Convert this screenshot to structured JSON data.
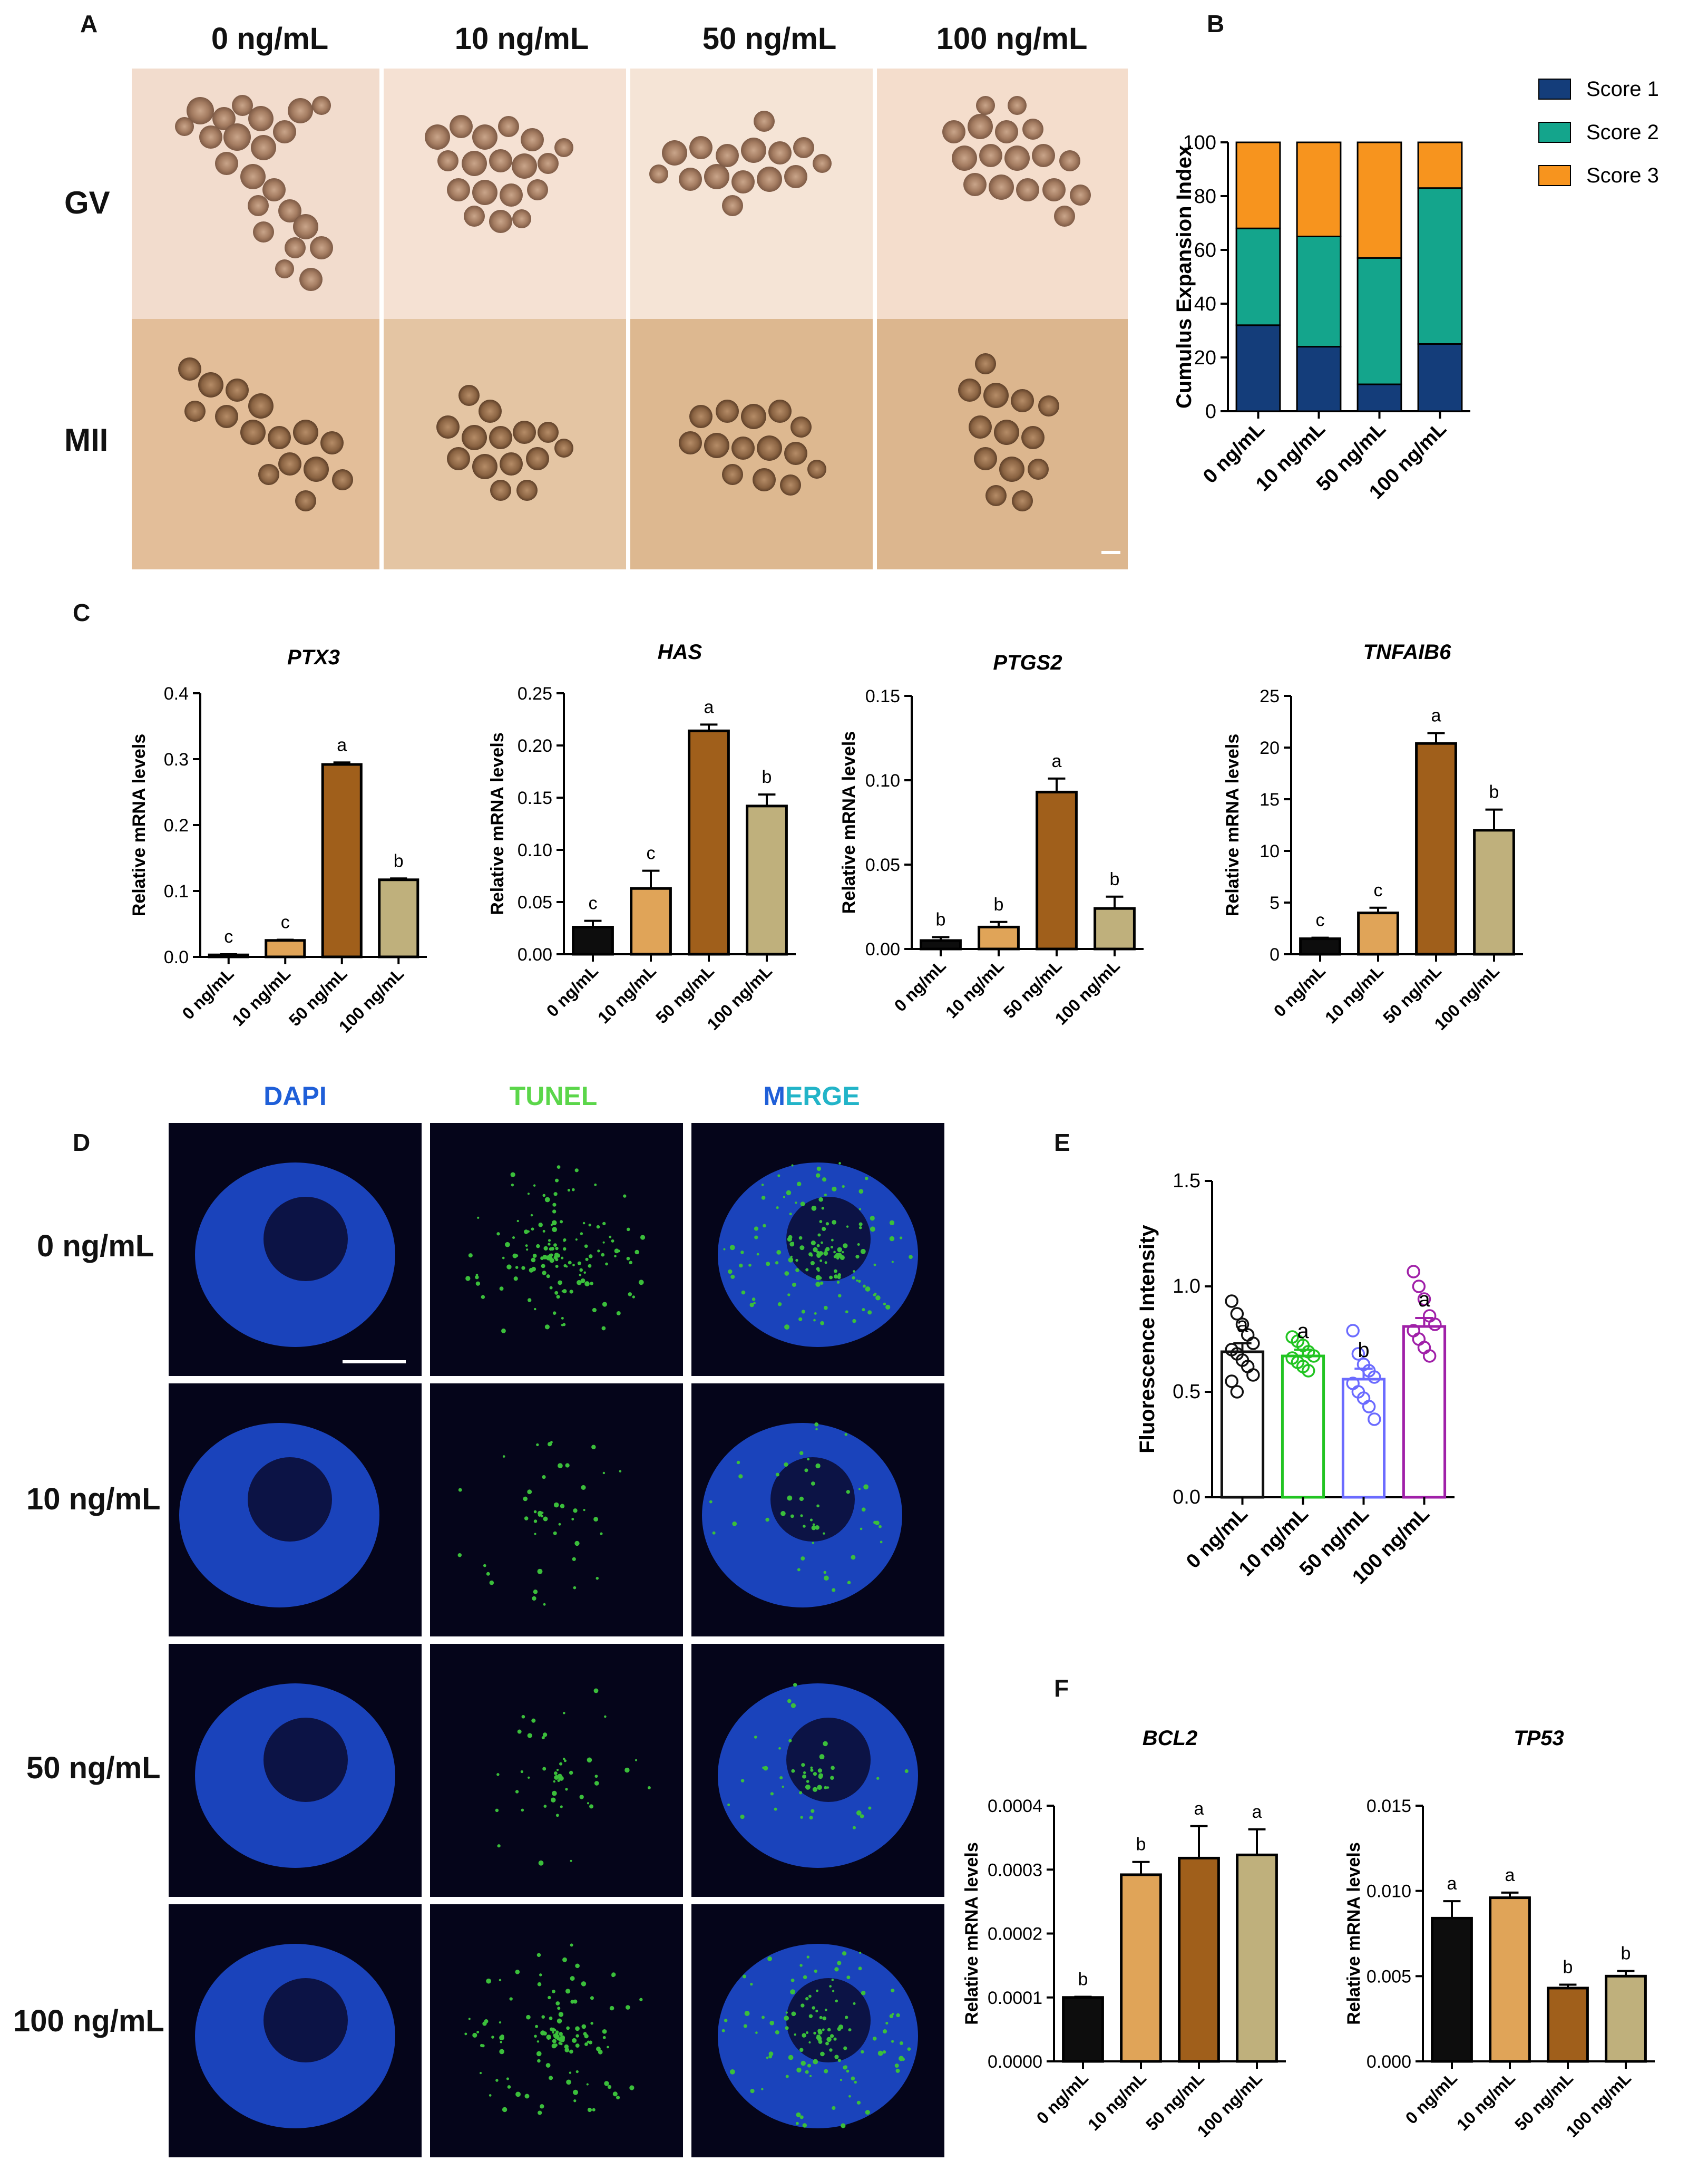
{
  "panels": {
    "A": "A",
    "B": "B",
    "C": "C",
    "D": "D",
    "E": "E",
    "F": "F"
  },
  "panel_a": {
    "columns": [
      "0 ng/mL",
      "10 ng/mL",
      "50 ng/mL",
      "100 ng/mL"
    ],
    "rows": [
      "GV",
      "MII"
    ]
  },
  "panel_d": {
    "headers": [
      "DAPI",
      "TUNEL",
      "M",
      "ERGE"
    ],
    "rows": [
      "0 ng/mL",
      "10 ng/mL",
      "50 ng/mL",
      "100 ng/mL"
    ],
    "colors": {
      "dapi": "#1f4fd8",
      "tunel": "#3bbf3b",
      "background": "#05051a"
    }
  },
  "chart_data": [
    {
      "id": "B",
      "type": "bar",
      "stacked": true,
      "categories": [
        "0 ng/mL",
        "10 ng/mL",
        "50 ng/mL",
        "100 ng/mL"
      ],
      "series": [
        {
          "name": "Score 1",
          "color": "#143d7a",
          "values": [
            32,
            24,
            10,
            25
          ]
        },
        {
          "name": "Score 2",
          "color": "#14a58c",
          "values": [
            36,
            41,
            47,
            58
          ]
        },
        {
          "name": "Score 3",
          "color": "#f7941e",
          "values": [
            32,
            35,
            43,
            17
          ]
        }
      ],
      "ylabel": "Cumulus Expansion Index",
      "ylim": [
        0,
        100
      ],
      "yticks": [
        "0",
        "20",
        "40",
        "60",
        "80",
        "100"
      ],
      "legend": "right"
    },
    {
      "id": "C1",
      "type": "bar",
      "title": "PTX3",
      "categories": [
        "0 ng/mL",
        "10 ng/mL",
        "50 ng/mL",
        "100 ng/mL"
      ],
      "values": [
        0.003,
        0.025,
        0.292,
        0.117
      ],
      "errors": [
        0.001,
        0.001,
        0.003,
        0.002
      ],
      "letters": [
        "c",
        "c",
        "a",
        "b"
      ],
      "ylabel": "Relative mRNA levels",
      "ylim": [
        0,
        0.4
      ],
      "yticks": [
        "0.0",
        "0.1",
        "0.2",
        "0.3",
        "0.4"
      ]
    },
    {
      "id": "C2",
      "type": "bar",
      "title": "HAS",
      "categories": [
        "0 ng/mL",
        "10 ng/mL",
        "50 ng/mL",
        "100 ng/mL"
      ],
      "values": [
        0.026,
        0.063,
        0.214,
        0.142
      ],
      "errors": [
        0.006,
        0.017,
        0.006,
        0.011
      ],
      "letters": [
        "c",
        "c",
        "a",
        "b"
      ],
      "ylabel": "Relative mRNA levels",
      "ylim": [
        0,
        0.25
      ],
      "yticks": [
        "0.00",
        "0.05",
        "0.10",
        "0.15",
        "0.20",
        "0.25"
      ]
    },
    {
      "id": "C3",
      "type": "bar",
      "title": "PTGS2",
      "categories": [
        "0 ng/mL",
        "10 ng/mL",
        "50 ng/mL",
        "100 ng/mL"
      ],
      "values": [
        0.005,
        0.013,
        0.093,
        0.024
      ],
      "errors": [
        0.002,
        0.003,
        0.008,
        0.007
      ],
      "letters": [
        "b",
        "b",
        "a",
        "b"
      ],
      "ylabel": "Relative mRNA levels",
      "ylim": [
        0,
        0.15
      ],
      "yticks": [
        "0.00",
        "0.05",
        "0.10",
        "0.15"
      ]
    },
    {
      "id": "C4",
      "type": "bar",
      "title": "TNFAIB6",
      "categories": [
        "0 ng/mL",
        "10 ng/mL",
        "50 ng/mL",
        "100 ng/mL"
      ],
      "values": [
        1.5,
        4.0,
        20.4,
        12.0
      ],
      "errors": [
        0.1,
        0.5,
        1.0,
        2.0
      ],
      "letters": [
        "c",
        "c",
        "a",
        "b"
      ],
      "ylabel": "Relative mRNA levels",
      "ylim": [
        0,
        25
      ],
      "yticks": [
        "0",
        "5",
        "10",
        "15",
        "20",
        "25"
      ]
    },
    {
      "id": "E",
      "type": "bar",
      "categories": [
        "0 ng/mL",
        "10 ng/mL",
        "50 ng/mL",
        "100 ng/mL"
      ],
      "values": [
        0.69,
        0.67,
        0.56,
        0.81
      ],
      "errors": [
        0.04,
        0.03,
        0.05,
        0.04
      ],
      "letters": [
        "a",
        "a",
        "b",
        "a"
      ],
      "colors": [
        "#111111",
        "#22c422",
        "#6b6bff",
        "#a020a8"
      ],
      "points": [
        [
          0.93,
          0.87,
          0.82,
          0.77,
          0.73,
          0.7,
          0.68,
          0.65,
          0.62,
          0.58,
          0.55,
          0.5
        ],
        [
          0.76,
          0.74,
          0.72,
          0.69,
          0.67,
          0.66,
          0.64,
          0.62,
          0.6
        ],
        [
          0.79,
          0.68,
          0.63,
          0.6,
          0.57,
          0.54,
          0.5,
          0.47,
          0.43,
          0.37
        ],
        [
          1.07,
          1.0,
          0.94,
          0.86,
          0.82,
          0.79,
          0.75,
          0.71,
          0.67
        ]
      ],
      "ylabel": "Fluorescence Intensity",
      "ylim": [
        0,
        1.5
      ],
      "yticks": [
        "0.0",
        "0.5",
        "1.0",
        "1.5"
      ]
    },
    {
      "id": "F1",
      "type": "bar",
      "title": "BCL2",
      "categories": [
        "0 ng/mL",
        "10 ng/mL",
        "50 ng/mL",
        "100 ng/mL"
      ],
      "values": [
        0.0001,
        0.000292,
        0.000318,
        0.000323
      ],
      "errors": [
        1e-06,
        2e-05,
        5e-05,
        4e-05
      ],
      "letters": [
        "b",
        "b",
        "a",
        "a"
      ],
      "ylabel": "Relative mRNA levels",
      "ylim": [
        0,
        0.0004
      ],
      "yticks": [
        "0.0000",
        "0.0001",
        "0.0002",
        "0.0003",
        "0.0004"
      ]
    },
    {
      "id": "F2",
      "type": "bar",
      "title": "TP53",
      "categories": [
        "0 ng/mL",
        "10 ng/mL",
        "50 ng/mL",
        "100 ng/mL"
      ],
      "values": [
        0.0084,
        0.0096,
        0.0043,
        0.005
      ],
      "errors": [
        0.001,
        0.0003,
        0.0002,
        0.0003
      ],
      "letters": [
        "a",
        "a",
        "b",
        "b"
      ],
      "ylabel": "Relative mRNA levels",
      "ylim": [
        0,
        0.015
      ],
      "yticks": [
        "0.000",
        "0.005",
        "0.010",
        "0.015"
      ]
    }
  ],
  "bar_colors": [
    "#0d0d0d",
    "#e0a458",
    "#a05f1b",
    "#bfb07c"
  ]
}
